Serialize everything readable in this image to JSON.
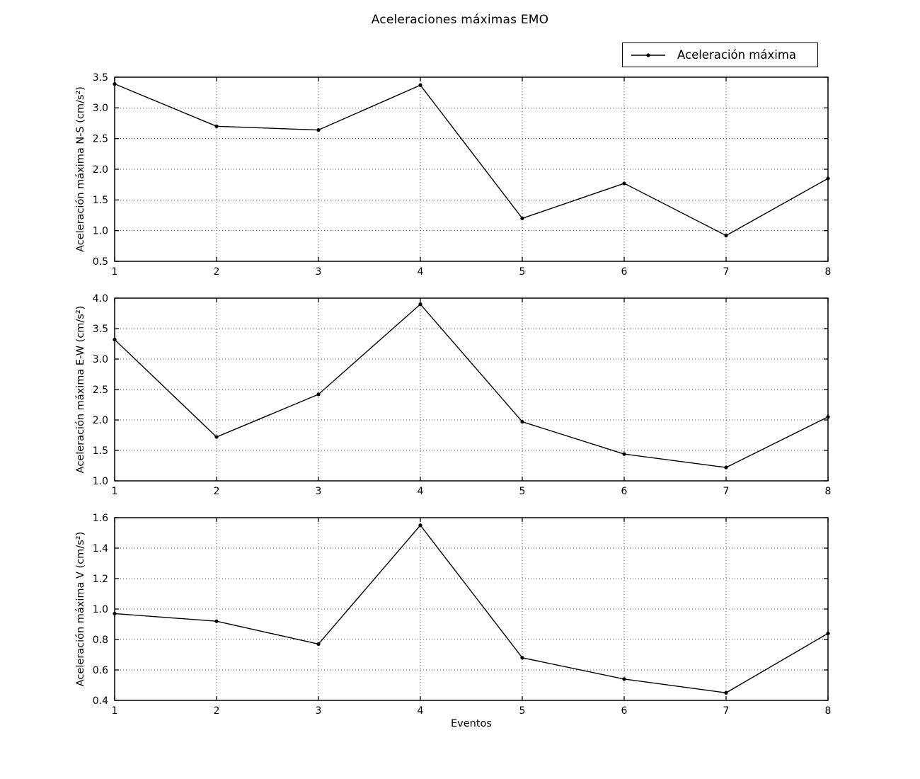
{
  "title": "Aceleraciones máximas EMO",
  "legend": {
    "label": "Aceleración máxima",
    "sample": "line-with-dot-marker"
  },
  "xlabel": "Eventos",
  "colors": {
    "line": "#000000",
    "grid": "#555555",
    "text": "#000000",
    "background": "#ffffff"
  },
  "chart_data": [
    {
      "type": "line",
      "name": "N-S",
      "ylabel": "Aceleración máxima N-S (cm/s²)",
      "x": [
        1,
        2,
        3,
        4,
        5,
        6,
        7,
        8
      ],
      "values": [
        3.39,
        2.7,
        2.64,
        3.37,
        1.2,
        1.77,
        0.92,
        1.85
      ],
      "ylim": [
        0.5,
        3.5
      ],
      "yticks": [
        0.5,
        1.0,
        1.5,
        2.0,
        2.5,
        3.0,
        3.5
      ],
      "ytick_labels": [
        "0.5",
        "1.0",
        "1.5",
        "2.0",
        "2.5",
        "3.0",
        "3.5"
      ],
      "xlim": [
        1,
        8
      ],
      "xticks": [
        1,
        2,
        3,
        4,
        5,
        6,
        7,
        8
      ],
      "xtick_labels": [
        "1",
        "2",
        "3",
        "4",
        "5",
        "6",
        "7",
        "8"
      ],
      "grid": true,
      "grid_style": "dotted",
      "marker": "dot"
    },
    {
      "type": "line",
      "name": "E-W",
      "ylabel": "Aceleración máxima E-W (cm/s²)",
      "x": [
        1,
        2,
        3,
        4,
        5,
        6,
        7,
        8
      ],
      "values": [
        3.32,
        1.72,
        2.42,
        3.9,
        1.97,
        1.44,
        1.22,
        2.05
      ],
      "ylim": [
        1.0,
        4.0
      ],
      "yticks": [
        1.0,
        1.5,
        2.0,
        2.5,
        3.0,
        3.5,
        4.0
      ],
      "ytick_labels": [
        "1.0",
        "1.5",
        "2.0",
        "2.5",
        "3.0",
        "3.5",
        "4.0"
      ],
      "xlim": [
        1,
        8
      ],
      "xticks": [
        1,
        2,
        3,
        4,
        5,
        6,
        7,
        8
      ],
      "xtick_labels": [
        "1",
        "2",
        "3",
        "4",
        "5",
        "6",
        "7",
        "8"
      ],
      "grid": true,
      "grid_style": "dotted",
      "marker": "dot"
    },
    {
      "type": "line",
      "name": "V",
      "ylabel": "Aceleración máxima V (cm/s²)",
      "x": [
        1,
        2,
        3,
        4,
        5,
        6,
        7,
        8
      ],
      "values": [
        0.97,
        0.92,
        0.77,
        1.55,
        0.68,
        0.54,
        0.45,
        0.84
      ],
      "ylim": [
        0.4,
        1.6
      ],
      "yticks": [
        0.4,
        0.6,
        0.8,
        1.0,
        1.2,
        1.4,
        1.6
      ],
      "ytick_labels": [
        "0.4",
        "0.6",
        "0.8",
        "1.0",
        "1.2",
        "1.4",
        "1.6"
      ],
      "xlim": [
        1,
        8
      ],
      "xticks": [
        1,
        2,
        3,
        4,
        5,
        6,
        7,
        8
      ],
      "xtick_labels": [
        "1",
        "2",
        "3",
        "4",
        "5",
        "6",
        "7",
        "8"
      ],
      "grid": true,
      "grid_style": "dotted",
      "marker": "dot"
    }
  ],
  "layout_hints": {
    "legend_position": "upper-right, outside axes",
    "subplots": 3,
    "shared_x": true
  }
}
